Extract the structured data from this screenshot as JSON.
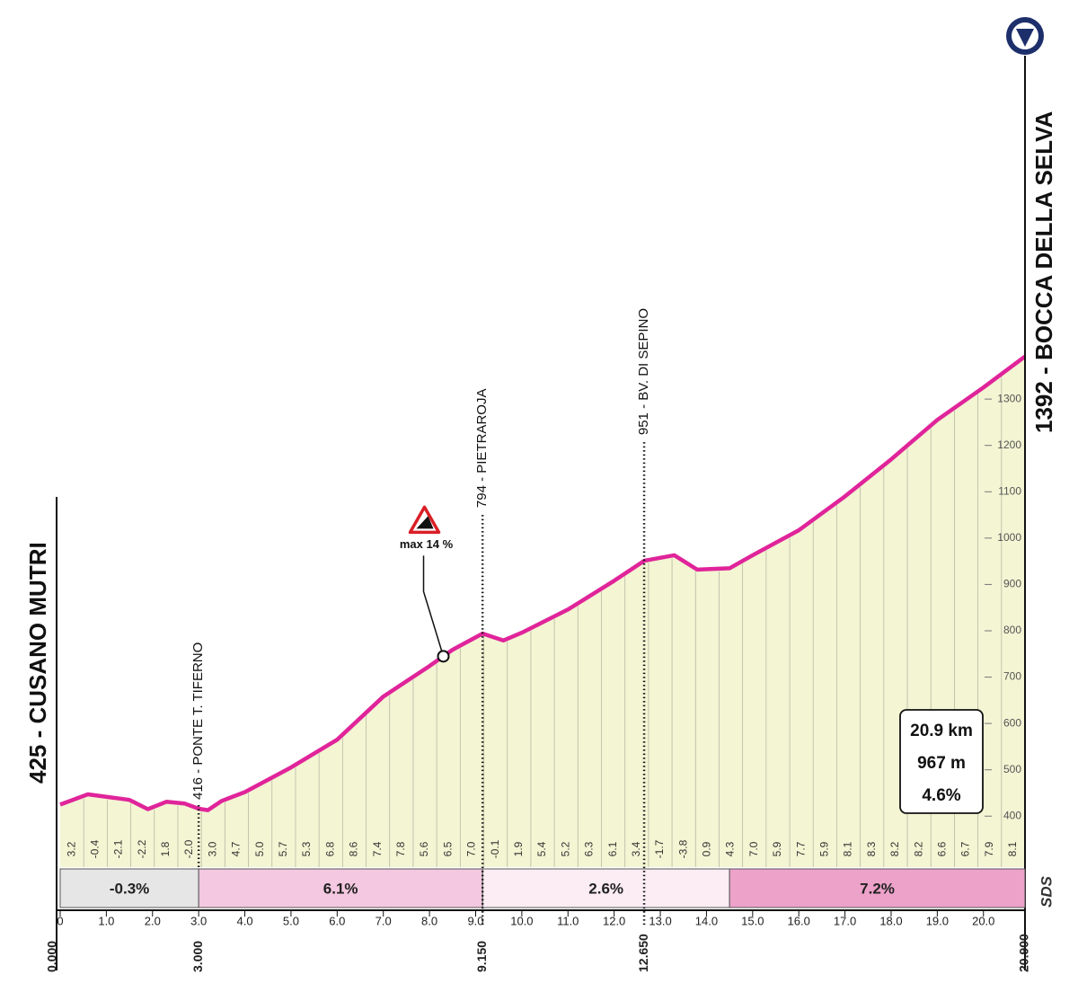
{
  "chart_data": {
    "type": "area",
    "x": [
      0,
      0.6,
      1.5,
      1.9,
      2.3,
      2.7,
      3.0,
      3.2,
      3.5,
      4.0,
      5.0,
      6.0,
      7.0,
      8.0,
      8.5,
      9.15,
      9.6,
      10.0,
      11.0,
      12.0,
      12.65,
      13.3,
      13.8,
      14.5,
      15.0,
      16.0,
      17.0,
      18.0,
      19.0,
      20.0,
      20.9
    ],
    "values": [
      425,
      447,
      435,
      415,
      431,
      427,
      416,
      413,
      433,
      452,
      505,
      565,
      658,
      724,
      759,
      794,
      779,
      796,
      846,
      908,
      951,
      963,
      932,
      935,
      963,
      1017,
      1090,
      1170,
      1255,
      1325,
      1392
    ],
    "color": "#e0249a",
    "fill": "#f3f5d3",
    "xlim": [
      0,
      20.9
    ],
    "ylim": [
      290,
      1500
    ],
    "xticks": [
      0,
      {
        "value": 1,
        "label": "1.0"
      },
      {
        "value": 2,
        "label": "2.0"
      },
      {
        "value": 3,
        "label": "3.0"
      },
      {
        "value": 4,
        "label": "4.0"
      },
      {
        "value": 5,
        "label": "5.0"
      },
      {
        "value": 6,
        "label": "6.0"
      },
      {
        "value": 7,
        "label": "7.0"
      },
      {
        "value": 8,
        "label": "8.0"
      },
      {
        "value": 9,
        "label": "9.0"
      },
      {
        "value": 10,
        "label": "10.0"
      },
      {
        "value": 11,
        "label": "11.0"
      },
      {
        "value": 12,
        "label": "12.0"
      },
      {
        "value": 13,
        "label": "13.0"
      },
      {
        "value": 14,
        "label": "14.0"
      },
      {
        "value": 15,
        "label": "15.0"
      },
      {
        "value": 16,
        "label": "16.0"
      },
      {
        "value": 17,
        "label": "17.0"
      },
      {
        "value": 18,
        "label": "18.0"
      },
      {
        "value": 19,
        "label": "19.0"
      },
      {
        "value": 20,
        "label": "20.0"
      }
    ],
    "yticks": [
      400,
      500,
      600,
      700,
      800,
      900,
      1000,
      1100,
      1200,
      1300
    ],
    "gradients": {
      "values": [
        3.2,
        -0.4,
        -2.1,
        -2.2,
        1.8,
        -2.0,
        3.0,
        4.7,
        5.0,
        5.7,
        5.3,
        6.8,
        8.6,
        7.4,
        7.8,
        5.6,
        6.5,
        7.0,
        -0.1,
        1.9,
        5.4,
        5.2,
        6.3,
        6.1,
        3.4,
        -1.7,
        -3.8,
        0.9,
        4.3,
        7.0,
        5.9,
        7.7,
        5.9,
        8.1,
        8.3,
        8.2,
        8.2,
        6.6,
        6.7,
        7.9,
        8.1
      ],
      "value_labels": [
        "3.2",
        "-0.4",
        "-2.1",
        "-2.2",
        "1.8",
        "-2.0",
        "3.0",
        "4.7",
        "5.0",
        "5.7",
        "5.3",
        "6.8",
        "8.6",
        "7.4",
        "7.8",
        "5.6",
        "6.5",
        "7.0",
        "-0.1",
        "1.9",
        "5.4",
        "5.2",
        "6.3",
        "6.1",
        "3.4",
        "-1.7",
        "-3.8",
        "0.9",
        "4.3",
        "7.0",
        "5.9",
        "7.7",
        "5.9",
        "8.1",
        "8.3",
        "8.2",
        "8.2",
        "6.6",
        "6.7",
        "7.9",
        "8.1"
      ]
    },
    "waypoints": [
      {
        "km": 0,
        "km_label": "0.000",
        "label": "425 - CUSANO MUTRI"
      },
      {
        "km": 3,
        "km_label": "3.000",
        "label": "416 - PONTE T. TIFERNO"
      },
      {
        "km": 9.15,
        "km_label": "9.150",
        "label": "794 - PIETRAROJA"
      },
      {
        "km": 12.65,
        "km_label": "12.650",
        "label": "951 - BV. DI SEPINO"
      },
      {
        "km": 20.9,
        "km_label": "20.900",
        "label": "1392 - BOCCA DELLA SELVA"
      }
    ],
    "sectors": [
      {
        "start": 0,
        "end": 3,
        "value": -0.3,
        "label": "-0.3%",
        "color": "#e6e6e6"
      },
      {
        "start": 3,
        "end": 9.15,
        "value": 6.1,
        "label": "6.1%",
        "color": "#f3c8e0"
      },
      {
        "start": 9.15,
        "end": 14.5,
        "value": 2.6,
        "label": "2.6%",
        "color": "#fcecf4"
      },
      {
        "start": 14.5,
        "end": 20.9,
        "value": 7.2,
        "label": "7.2%",
        "color": "#eda2ca"
      }
    ],
    "annotation": {
      "text": "max 14 %",
      "x": 8.3
    },
    "summary": {
      "distance": "20.9 km",
      "gain": "967 m",
      "gradient": "4.6%"
    },
    "logo": "SDS"
  }
}
